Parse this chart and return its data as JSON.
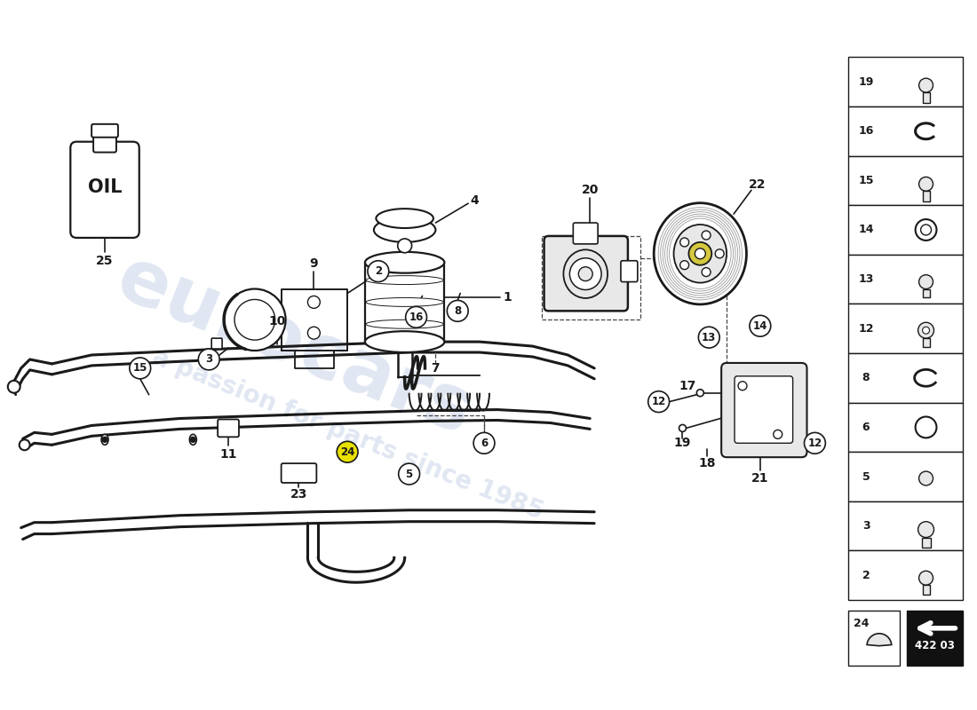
{
  "bg_color": "#ffffff",
  "line_color": "#1a1a1a",
  "dashed_color": "#444444",
  "watermark_color": "#c8d4e8",
  "part_code": "422 03",
  "sidebar_numbers": [
    19,
    16,
    15,
    14,
    13,
    12,
    8,
    6,
    5,
    3,
    2
  ],
  "yellow_color": "#e8e000",
  "pulley_yellow": "#d4c840",
  "gray_light": "#e8e8e8",
  "gray_mid": "#cccccc"
}
